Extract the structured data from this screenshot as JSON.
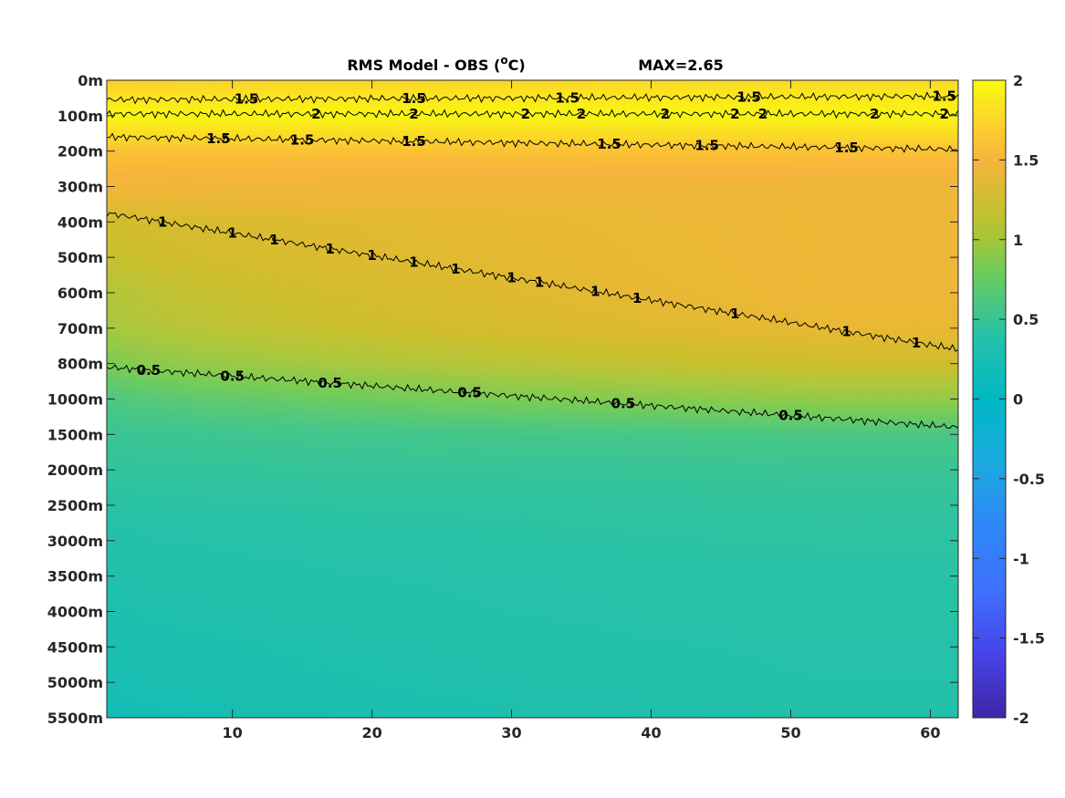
{
  "chart_data": {
    "type": "heatmap",
    "title": "RMS Model - OBS (",
    "title_superscript": "o",
    "title_unit": "C)",
    "annotation": "MAX=2.65",
    "x_ticks": [
      10,
      20,
      30,
      40,
      50,
      60
    ],
    "xlim": [
      1,
      62
    ],
    "y_tick_labels": [
      "0m",
      "100m",
      "200m",
      "300m",
      "400m",
      "500m",
      "600m",
      "700m",
      "800m",
      "1000m",
      "1500m",
      "2000m",
      "2500m",
      "3000m",
      "3500m",
      "4000m",
      "4500m",
      "5000m",
      "5500m"
    ],
    "y_reversed": true,
    "colorbar": {
      "ticks": [
        2,
        1.5,
        1,
        0.5,
        0,
        -0.5,
        -1,
        -1.5,
        -2
      ],
      "range": [
        -2,
        2
      ],
      "colormap": "parula"
    },
    "field_profile": {
      "depth_levels": [
        "0m",
        "100m",
        "200m",
        "300m",
        "400m",
        "500m",
        "600m",
        "700m",
        "800m",
        "1000m",
        "1500m",
        "2000m",
        "2500m",
        "3000m",
        "3500m",
        "4000m",
        "4500m",
        "5000m",
        "5500m"
      ],
      "x_start_values": [
        1.6,
        1.95,
        1.5,
        1.35,
        1.1,
        1.05,
        0.95,
        0.9,
        0.75,
        0.55,
        0.45,
        0.4,
        0.35,
        0.3,
        0.28,
        0.25,
        0.22,
        0.2,
        0.15
      ],
      "x_end_values": [
        1.7,
        1.95,
        1.5,
        1.3,
        1.3,
        1.3,
        1.3,
        1.25,
        1.1,
        0.85,
        0.55,
        0.45,
        0.4,
        0.38,
        0.35,
        0.35,
        0.33,
        0.32,
        0.3
      ]
    },
    "contours": [
      {
        "level": "0.5",
        "depth_index_start": 8.1,
        "depth_index_end": 9.8,
        "label_x": [
          4,
          10,
          17,
          27,
          38,
          50
        ]
      },
      {
        "level": "1",
        "depth_index_start": 3.75,
        "depth_index_end": 7.6,
        "label_x": [
          5,
          10,
          13,
          17,
          20,
          23,
          26,
          30,
          32,
          36,
          39,
          46,
          54,
          59
        ]
      },
      {
        "level": "1.5",
        "depth_index_start": 1.6,
        "depth_index_end": 1.95,
        "label_x": [
          9,
          15,
          23,
          37,
          44,
          54
        ]
      },
      {
        "level": "1.5",
        "depth_index_start": 0.55,
        "depth_index_end": 0.45,
        "label_x": [
          11,
          23,
          34,
          47,
          61
        ]
      },
      {
        "level": "2",
        "depth_index_start": 0.95,
        "depth_index_end": 0.95,
        "label_x": [
          16,
          23,
          31,
          35,
          41,
          46,
          48,
          56,
          61
        ]
      }
    ]
  }
}
